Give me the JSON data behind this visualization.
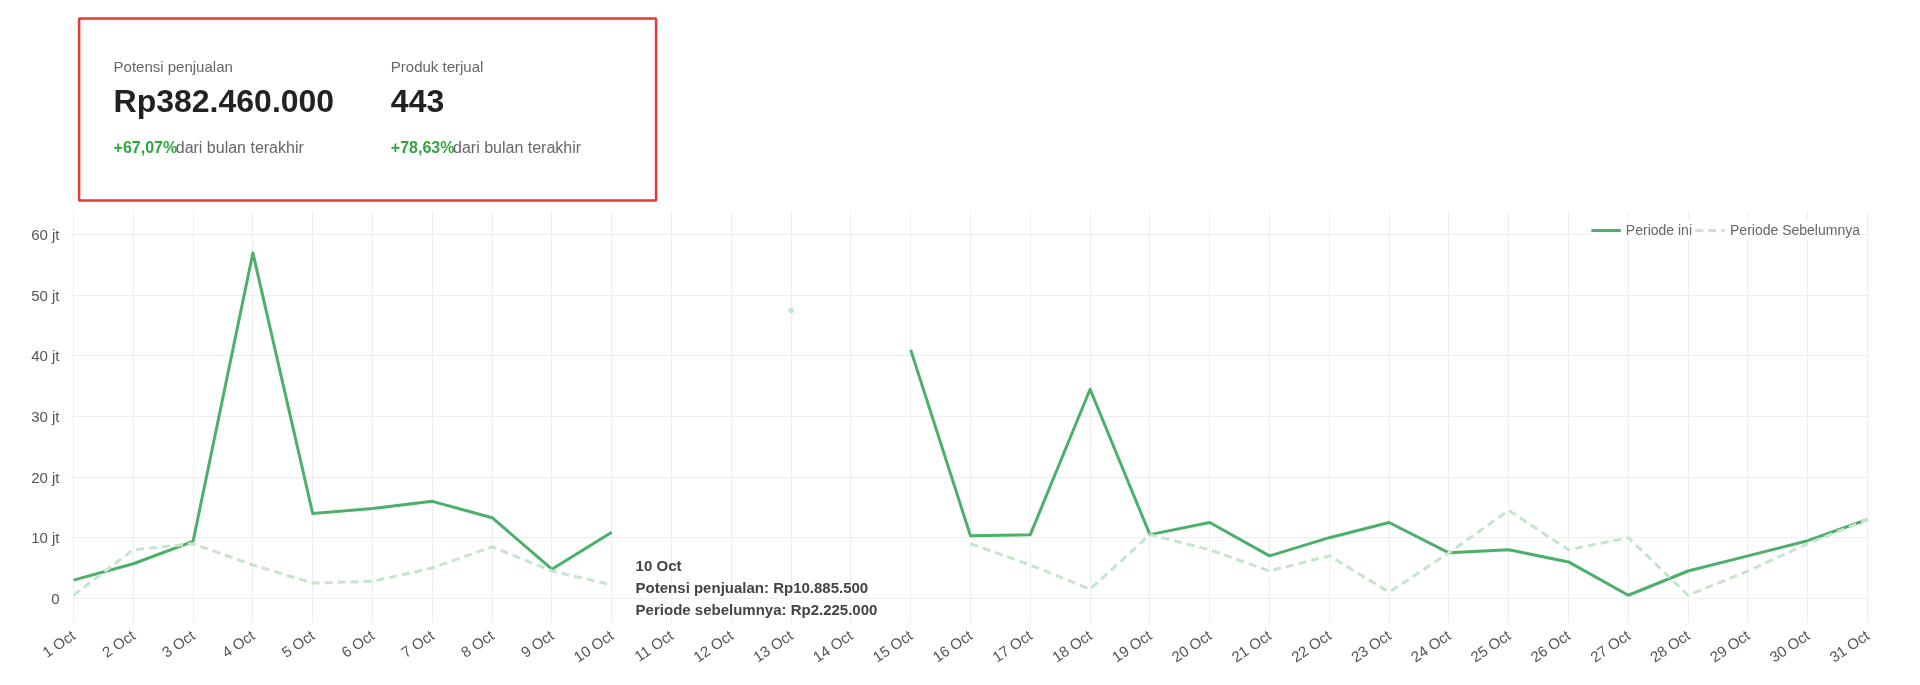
{
  "chart_data": [
    {
      "type": "other",
      "annotations": [
        "Potensi penjualan",
        "Rp382.460.000",
        "+67,07%",
        "dari bulan terakhir",
        "Produk terjual",
        "443",
        "+78,63%",
        "dari bulan terakhir"
      ]
    },
    {
      "type": "line",
      "categories": [
        "1 Oct",
        "2 Oct",
        "3 Oct",
        "4 Oct",
        "5 Oct",
        "6 Oct",
        "7 Oct",
        "8 Oct",
        "9 Oct",
        "10 Oct",
        "11 Oct",
        "12 Oct",
        "13 Oct",
        "14 Oct",
        "15 Oct",
        "16 Oct",
        "17 Oct",
        "18 Oct",
        "19 Oct",
        "20 Oct",
        "21 Oct",
        "22 Oct",
        "23 Oct",
        "24 Oct",
        "25 Oct",
        "26 Oct",
        "27 Oct",
        "28 Oct",
        "29 Oct",
        "30 Oct",
        "31 Oct"
      ],
      "ylim": [
        -4,
        64
      ],
      "yticks": [
        {
          "value": 0,
          "label": "0"
        },
        {
          "value": 10,
          "label": "10 jt"
        },
        {
          "value": 20,
          "label": "20 jt"
        },
        {
          "value": 30,
          "label": "30 jt"
        },
        {
          "value": 40,
          "label": "40 jt"
        },
        {
          "value": 50,
          "label": "50 jt"
        },
        {
          "value": 60,
          "label": "60 jt"
        }
      ],
      "grid": true,
      "legend": "top right",
      "marker": "none",
      "series": [
        {
          "name": "Periode ini",
          "color": "#4caf6a",
          "line_style": "solid",
          "values": [
            3,
            5.7,
            9.4,
            57,
            14,
            14.8,
            16,
            13.3,
            4.8,
            10.9,
            null,
            null,
            null,
            null,
            41,
            10.3,
            10.5,
            34.5,
            10.5,
            12.5,
            7,
            10,
            12.5,
            7.5,
            8,
            6,
            0.5,
            4.5,
            7,
            9.5,
            13
          ]
        },
        {
          "name": "Periode Sebelumnya",
          "color": "#c5e5cc",
          "line_style": "dashed",
          "values": [
            0.5,
            8,
            9,
            5.5,
            2.5,
            2.8,
            5,
            8.5,
            4.5,
            2.2,
            null,
            null,
            47.5,
            null,
            null,
            9,
            5.5,
            1.5,
            10.5,
            8,
            4.5,
            7,
            1,
            7.5,
            14.5,
            8,
            10,
            0.5,
            4.5,
            9,
            13
          ]
        }
      ],
      "annotations": [
        {
          "text": "10 Oct\nPotensi penjualan: Rp10.885.500\nPeriode sebelumnya: Rp2.225.000",
          "x": "10 Oct",
          "y": 10.8855
        }
      ]
    }
  ]
}
